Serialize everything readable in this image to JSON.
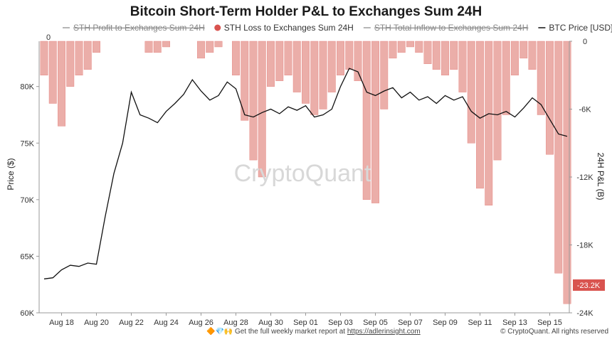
{
  "title": "Bitcoin Short-Term Holder P&L to Exchanges Sum 24H",
  "legend": [
    {
      "label": "STH Profit to Exchanges Sum 24H",
      "color": "#9e9e9e",
      "marker": "line",
      "hidden": true
    },
    {
      "label": "STH Loss to Exchanges Sum 24H",
      "color": "#d9534f",
      "marker": "dot",
      "hidden": false
    },
    {
      "label": "STH Total Inflow to Exchanges Sum 24H",
      "color": "#9e9e9e",
      "marker": "line",
      "hidden": true
    },
    {
      "label": "BTC Price [USD]",
      "color": "#111111",
      "marker": "line",
      "hidden": false
    }
  ],
  "watermark": "CryptoQuant",
  "footer": {
    "emojis": "🔶💎🙌",
    "text_prefix": "Get the full weekly market report at ",
    "link": "https://adlerinsight.com",
    "copyright": "© CryptoQuant. All rights reserved"
  },
  "badge": "-23.2K",
  "top_zero_label": "0",
  "chart_data": {
    "type": "bar+line",
    "x_ticks": [
      "Aug 18",
      "Aug 20",
      "Aug 22",
      "Aug 24",
      "Aug 26",
      "Aug 28",
      "Aug 30",
      "Sep 01",
      "Sep 03",
      "Sep 05",
      "Sep 07",
      "Sep 09",
      "Sep 11",
      "Sep 13",
      "Sep 15"
    ],
    "left_axis": {
      "label": "Price ($)",
      "ticks": [
        "60K",
        "65K",
        "70K",
        "75K",
        "80K"
      ],
      "range": [
        60000,
        84000
      ]
    },
    "right_axis": {
      "label": "24H P&L (B)",
      "ticks": [
        "0",
        "-6K",
        "-12K",
        "-18K",
        "-24K"
      ],
      "range": [
        0,
        -24000
      ]
    },
    "btc_price_series": [
      {
        "x": "Aug 17",
        "y": 63000
      },
      {
        "x": "Aug 17 12h",
        "y": 63100
      },
      {
        "x": "Aug 18",
        "y": 63800
      },
      {
        "x": "Aug 18 12h",
        "y": 64200
      },
      {
        "x": "Aug 19",
        "y": 64100
      },
      {
        "x": "Aug 19 12h",
        "y": 64400
      },
      {
        "x": "Aug 20",
        "y": 64300
      },
      {
        "x": "Aug 20 12h",
        "y": 68500
      },
      {
        "x": "Aug 21",
        "y": 72300
      },
      {
        "x": "Aug 21 12h",
        "y": 75000
      },
      {
        "x": "Aug 22",
        "y": 79500
      },
      {
        "x": "Aug 22 12h",
        "y": 77500
      },
      {
        "x": "Aug 23",
        "y": 77200
      },
      {
        "x": "Aug 23 12h",
        "y": 76800
      },
      {
        "x": "Aug 24",
        "y": 77800
      },
      {
        "x": "Aug 24 12h",
        "y": 78500
      },
      {
        "x": "Aug 25",
        "y": 79300
      },
      {
        "x": "Aug 25 12h",
        "y": 80600
      },
      {
        "x": "Aug 26",
        "y": 79600
      },
      {
        "x": "Aug 26 12h",
        "y": 78800
      },
      {
        "x": "Aug 27",
        "y": 79200
      },
      {
        "x": "Aug 27 12h",
        "y": 80400
      },
      {
        "x": "Aug 28",
        "y": 79800
      },
      {
        "x": "Aug 28 12h",
        "y": 77500
      },
      {
        "x": "Aug 29",
        "y": 77300
      },
      {
        "x": "Aug 29 12h",
        "y": 77700
      },
      {
        "x": "Aug 30",
        "y": 78000
      },
      {
        "x": "Aug 30 12h",
        "y": 77600
      },
      {
        "x": "Aug 31",
        "y": 78200
      },
      {
        "x": "Aug 31 12h",
        "y": 77900
      },
      {
        "x": "Sep 01",
        "y": 78300
      },
      {
        "x": "Sep 01 12h",
        "y": 77300
      },
      {
        "x": "Sep 02",
        "y": 77500
      },
      {
        "x": "Sep 02 12h",
        "y": 78000
      },
      {
        "x": "Sep 03",
        "y": 80000
      },
      {
        "x": "Sep 03 12h",
        "y": 81600
      },
      {
        "x": "Sep 04",
        "y": 81300
      },
      {
        "x": "Sep 04 12h",
        "y": 79500
      },
      {
        "x": "Sep 05",
        "y": 79200
      },
      {
        "x": "Sep 05 12h",
        "y": 79600
      },
      {
        "x": "Sep 06",
        "y": 79900
      },
      {
        "x": "Sep 06 12h",
        "y": 79000
      },
      {
        "x": "Sep 07",
        "y": 79500
      },
      {
        "x": "Sep 07 12h",
        "y": 78800
      },
      {
        "x": "Sep 08",
        "y": 79100
      },
      {
        "x": "Sep 08 12h",
        "y": 78500
      },
      {
        "x": "Sep 09",
        "y": 79200
      },
      {
        "x": "Sep 09 12h",
        "y": 78800
      },
      {
        "x": "Sep 10",
        "y": 79100
      },
      {
        "x": "Sep 10 12h",
        "y": 77800
      },
      {
        "x": "Sep 11",
        "y": 77200
      },
      {
        "x": "Sep 11 12h",
        "y": 77600
      },
      {
        "x": "Sep 12",
        "y": 77500
      },
      {
        "x": "Sep 12 12h",
        "y": 77800
      },
      {
        "x": "Sep 13",
        "y": 77300
      },
      {
        "x": "Sep 13 12h",
        "y": 78100
      },
      {
        "x": "Sep 14",
        "y": 79000
      },
      {
        "x": "Sep 14 12h",
        "y": 78400
      },
      {
        "x": "Sep 15",
        "y": 77100
      },
      {
        "x": "Sep 15 12h",
        "y": 75800
      },
      {
        "x": "Sep 16",
        "y": 75600
      }
    ],
    "sth_loss_bars": [
      {
        "x": "Aug 17",
        "y": -3000
      },
      {
        "x": "Aug 17 12h",
        "y": -5500
      },
      {
        "x": "Aug 18",
        "y": -7500
      },
      {
        "x": "Aug 18 12h",
        "y": -4000
      },
      {
        "x": "Aug 19",
        "y": -3000
      },
      {
        "x": "Aug 19 12h",
        "y": -2500
      },
      {
        "x": "Aug 20",
        "y": -1000
      },
      {
        "x": "Aug 20 12h",
        "y": 0
      },
      {
        "x": "Aug 21",
        "y": 0
      },
      {
        "x": "Aug 21 12h",
        "y": 0
      },
      {
        "x": "Aug 22",
        "y": 0
      },
      {
        "x": "Aug 22 12h",
        "y": 0
      },
      {
        "x": "Aug 23",
        "y": -1000
      },
      {
        "x": "Aug 23 12h",
        "y": -1000
      },
      {
        "x": "Aug 24",
        "y": -500
      },
      {
        "x": "Aug 24 12h",
        "y": 0
      },
      {
        "x": "Aug 25",
        "y": 0
      },
      {
        "x": "Aug 25 12h",
        "y": 0
      },
      {
        "x": "Aug 26",
        "y": -1500
      },
      {
        "x": "Aug 26 12h",
        "y": -1000
      },
      {
        "x": "Aug 27",
        "y": -500
      },
      {
        "x": "Aug 27 12h",
        "y": 0
      },
      {
        "x": "Aug 28",
        "y": -3000
      },
      {
        "x": "Aug 28 12h",
        "y": -7000
      },
      {
        "x": "Aug 29",
        "y": -10500
      },
      {
        "x": "Aug 29 12h",
        "y": -12000
      },
      {
        "x": "Aug 30",
        "y": -4000
      },
      {
        "x": "Aug 30 12h",
        "y": -3500
      },
      {
        "x": "Aug 31",
        "y": -3000
      },
      {
        "x": "Aug 31 12h",
        "y": -4500
      },
      {
        "x": "Sep 01",
        "y": -5500
      },
      {
        "x": "Sep 01 12h",
        "y": -6500
      },
      {
        "x": "Sep 02",
        "y": -6000
      },
      {
        "x": "Sep 02 12h",
        "y": -4500
      },
      {
        "x": "Sep 03",
        "y": -3000
      },
      {
        "x": "Sep 03 12h",
        "y": -2500
      },
      {
        "x": "Sep 04",
        "y": -3500
      },
      {
        "x": "Sep 04 12h",
        "y": -14000
      },
      {
        "x": "Sep 05",
        "y": -14300
      },
      {
        "x": "Sep 05 12h",
        "y": -6000
      },
      {
        "x": "Sep 06",
        "y": -1500
      },
      {
        "x": "Sep 06 12h",
        "y": -1000
      },
      {
        "x": "Sep 07",
        "y": -500
      },
      {
        "x": "Sep 07 12h",
        "y": -1000
      },
      {
        "x": "Sep 08",
        "y": -2000
      },
      {
        "x": "Sep 08 12h",
        "y": -2500
      },
      {
        "x": "Sep 09",
        "y": -3000
      },
      {
        "x": "Sep 09 12h",
        "y": -2500
      },
      {
        "x": "Sep 10",
        "y": -4500
      },
      {
        "x": "Sep 10 12h",
        "y": -9000
      },
      {
        "x": "Sep 11",
        "y": -13000
      },
      {
        "x": "Sep 11 12h",
        "y": -14500
      },
      {
        "x": "Sep 12",
        "y": -10500
      },
      {
        "x": "Sep 12 12h",
        "y": -6500
      },
      {
        "x": "Sep 13",
        "y": -3000
      },
      {
        "x": "Sep 13 12h",
        "y": -1500
      },
      {
        "x": "Sep 14",
        "y": -2500
      },
      {
        "x": "Sep 14 12h",
        "y": -6500
      },
      {
        "x": "Sep 15",
        "y": -10000
      },
      {
        "x": "Sep 15 12h",
        "y": -20500
      },
      {
        "x": "Sep 16",
        "y": -23200
      }
    ],
    "grid": false,
    "legend_position": "top-center"
  }
}
